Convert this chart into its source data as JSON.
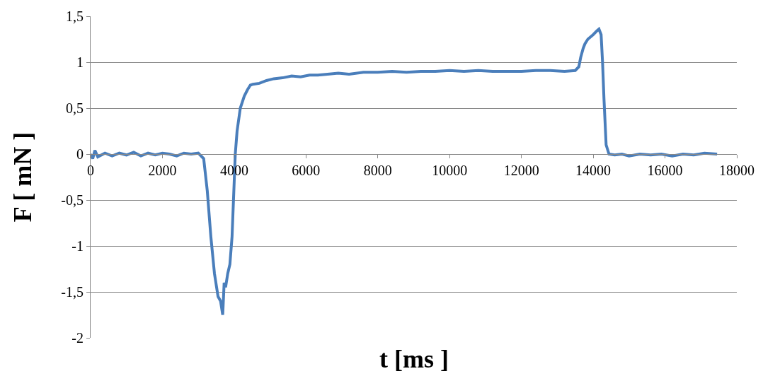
{
  "chart_data": {
    "type": "line",
    "xlabel": "t [ms ]",
    "ylabel": "F [ mN ]",
    "x": [
      0,
      60,
      120,
      200,
      400,
      600,
      800,
      1000,
      1200,
      1400,
      1600,
      1800,
      2000,
      2200,
      2400,
      2600,
      2800,
      3000,
      3150,
      3250,
      3350,
      3450,
      3550,
      3620,
      3680,
      3720,
      3760,
      3820,
      3880,
      3940,
      4000,
      4030,
      4080,
      4170,
      4280,
      4370,
      4450,
      4520,
      4700,
      4900,
      5100,
      5350,
      5600,
      5850,
      6100,
      6330,
      6600,
      6900,
      7200,
      7600,
      8000,
      8400,
      8800,
      9200,
      9600,
      10000,
      10400,
      10800,
      11200,
      11600,
      12000,
      12400,
      12800,
      13200,
      13500,
      13600,
      13650,
      13720,
      13770,
      13850,
      14000,
      14100,
      14160,
      14220,
      14260,
      14300,
      14360,
      14440,
      14600,
      14800,
      15000,
      15300,
      15600,
      15900,
      16200,
      16500,
      16800,
      17100,
      17450
    ],
    "series": [
      {
        "color": "#4a7ebb",
        "values": [
          0,
          -0.05,
          0.04,
          -0.03,
          0.01,
          -0.02,
          0.01,
          -0.01,
          0.02,
          -0.02,
          0.01,
          -0.01,
          0.01,
          0,
          -0.02,
          0.01,
          0,
          0.01,
          -0.05,
          -0.4,
          -0.9,
          -1.3,
          -1.55,
          -1.6,
          -1.75,
          -1.4,
          -1.45,
          -1.3,
          -1.2,
          -0.9,
          -0.3,
          0,
          0.25,
          0.5,
          0.63,
          0.7,
          0.75,
          0.76,
          0.77,
          0.8,
          0.82,
          0.83,
          0.85,
          0.84,
          0.86,
          0.86,
          0.87,
          0.88,
          0.87,
          0.89,
          0.89,
          0.9,
          0.89,
          0.9,
          0.9,
          0.91,
          0.9,
          0.91,
          0.9,
          0.9,
          0.9,
          0.91,
          0.91,
          0.9,
          0.91,
          0.95,
          1.05,
          1.15,
          1.2,
          1.25,
          1.3,
          1.34,
          1.36,
          1.3,
          1.0,
          0.6,
          0.1,
          0,
          -0.01,
          0,
          -0.02,
          0,
          -0.01,
          0,
          -0.02,
          0,
          -0.01,
          0.01,
          0
        ]
      }
    ],
    "xlim": [
      0,
      18000
    ],
    "xticks": [
      0,
      2000,
      4000,
      6000,
      8000,
      10000,
      12000,
      14000,
      16000,
      18000
    ],
    "ylim": [
      -2,
      1.5
    ],
    "yticks": [
      {
        "value": -2,
        "label": "-2"
      },
      {
        "value": -1.5,
        "label": "-1,5"
      },
      {
        "value": -1,
        "label": "-1"
      },
      {
        "value": -0.5,
        "label": "-0,5"
      },
      {
        "value": 0,
        "label": "0"
      },
      {
        "value": 0.5,
        "label": "0,5"
      },
      {
        "value": 1,
        "label": "1"
      },
      {
        "value": 1.5,
        "label": "1,5"
      }
    ],
    "grid": "y",
    "line_style": "solid",
    "marker": "none"
  }
}
